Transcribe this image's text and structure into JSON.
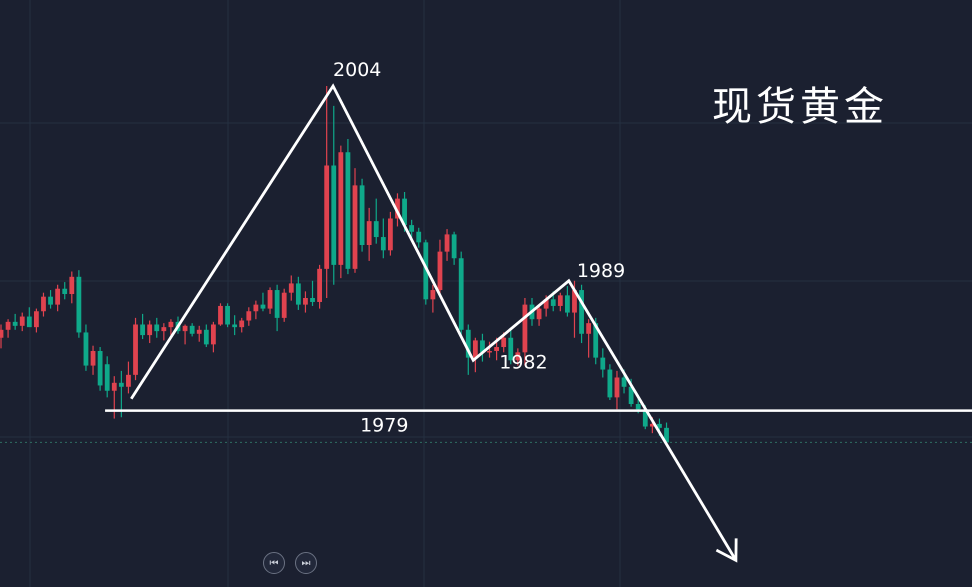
{
  "title": "现货黄金",
  "colors": {
    "background": "#1b2030",
    "up": "#e0434f",
    "down": "#0fa98a",
    "grid": "#253041",
    "annotation": "#ffffff"
  },
  "nav": {
    "prev_icon": "skip-back-icon",
    "next_icon": "skip-forward-icon"
  },
  "chart_data": {
    "type": "candlestick",
    "title": "现货黄金",
    "grid": true,
    "up_color": "red",
    "down_color": "green",
    "candles": [
      [
        1985.0,
        1986.0,
        1984.2,
        1985.6
      ],
      [
        1985.6,
        1986.4,
        1985.0,
        1986.2
      ],
      [
        1986.2,
        1986.8,
        1985.6,
        1985.9
      ],
      [
        1985.9,
        1986.9,
        1985.5,
        1986.6
      ],
      [
        1986.6,
        1987.3,
        1986.0,
        1985.8
      ],
      [
        1985.8,
        1987.2,
        1985.4,
        1987.0
      ],
      [
        1987.0,
        1988.4,
        1986.6,
        1988.1
      ],
      [
        1988.1,
        1988.6,
        1987.2,
        1987.5
      ],
      [
        1987.5,
        1989.0,
        1987.0,
        1988.7
      ],
      [
        1988.7,
        1989.2,
        1987.9,
        1988.3
      ],
      [
        1988.3,
        1990.0,
        1987.6,
        1989.6
      ],
      [
        1989.6,
        1990.1,
        1985.0,
        1985.4
      ],
      [
        1985.4,
        1986.0,
        1982.5,
        1982.9
      ],
      [
        1982.9,
        1984.4,
        1982.2,
        1984.0
      ],
      [
        1984.0,
        1984.3,
        1981.0,
        1981.4
      ],
      [
        1983.0,
        1983.6,
        1980.5,
        1981.0
      ],
      [
        1981.0,
        1982.1,
        1978.9,
        1981.6
      ],
      [
        1981.6,
        1982.5,
        1979.0,
        1981.3
      ],
      [
        1981.3,
        1983.2,
        1980.8,
        1982.2
      ],
      [
        1982.2,
        1986.5,
        1981.8,
        1986.0
      ],
      [
        1986.0,
        1986.8,
        1984.9,
        1985.2
      ],
      [
        1985.2,
        1986.3,
        1984.6,
        1986.0
      ],
      [
        1986.0,
        1986.5,
        1985.0,
        1985.5
      ],
      [
        1985.5,
        1986.1,
        1984.8,
        1985.8
      ],
      [
        1985.8,
        1986.4,
        1985.2,
        1986.2
      ],
      [
        1986.2,
        1986.6,
        1985.3,
        1985.5
      ],
      [
        1985.5,
        1986.0,
        1984.5,
        1985.9
      ],
      [
        1985.9,
        1986.1,
        1985.1,
        1985.3
      ],
      [
        1985.3,
        1985.9,
        1984.7,
        1985.6
      ],
      [
        1985.6,
        1986.0,
        1984.3,
        1984.5
      ],
      [
        1984.5,
        1986.2,
        1983.9,
        1986.0
      ],
      [
        1986.0,
        1987.6,
        1985.9,
        1987.4
      ],
      [
        1987.4,
        1987.6,
        1985.8,
        1986.0
      ],
      [
        1986.0,
        1986.7,
        1985.2,
        1985.8
      ],
      [
        1985.8,
        1986.5,
        1985.4,
        1986.3
      ],
      [
        1986.3,
        1987.3,
        1985.9,
        1987.0
      ],
      [
        1987.0,
        1987.8,
        1986.4,
        1987.5
      ],
      [
        1987.5,
        1988.4,
        1987.0,
        1987.2
      ],
      [
        1987.2,
        1988.8,
        1986.8,
        1988.6
      ],
      [
        1988.6,
        1989.0,
        1985.5,
        1986.5
      ],
      [
        1986.5,
        1988.7,
        1986.2,
        1988.4
      ],
      [
        1988.4,
        1989.7,
        1987.8,
        1989.1
      ],
      [
        1989.1,
        1989.6,
        1987.1,
        1987.5
      ],
      [
        1987.5,
        1988.5,
        1986.9,
        1988.0
      ],
      [
        1988.0,
        1989.3,
        1987.4,
        1987.7
      ],
      [
        1987.7,
        1990.5,
        1987.2,
        1990.2
      ],
      [
        1990.2,
        2004.0,
        1988.0,
        1998.0
      ],
      [
        1998.0,
        2002.5,
        1989.0,
        1990.5
      ],
      [
        1990.5,
        1999.5,
        1989.5,
        1999.0
      ],
      [
        1999.0,
        2000.0,
        1989.8,
        1990.2
      ],
      [
        1990.2,
        1997.8,
        1989.9,
        1996.5
      ],
      [
        1996.5,
        1997.0,
        1991.5,
        1992.0
      ],
      [
        1992.0,
        1994.8,
        1990.8,
        1993.8
      ],
      [
        1993.8,
        1995.5,
        1992.1,
        1992.6
      ],
      [
        1992.6,
        1994.0,
        1991.0,
        1991.6
      ],
      [
        1991.6,
        1994.5,
        1991.2,
        1994.0
      ],
      [
        1994.0,
        1995.9,
        1993.4,
        1995.5
      ],
      [
        1995.5,
        1996.0,
        1993.0,
        1993.5
      ],
      [
        1993.5,
        1993.9,
        1992.4,
        1993.0
      ],
      [
        1993.0,
        1993.3,
        1991.8,
        1992.2
      ],
      [
        1992.2,
        1992.4,
        1987.5,
        1987.9
      ],
      [
        1987.9,
        1989.0,
        1986.9,
        1988.6
      ],
      [
        1988.6,
        1992.4,
        1988.2,
        1991.5
      ],
      [
        1991.5,
        1993.2,
        1990.8,
        1992.8
      ],
      [
        1992.8,
        1993.0,
        1990.5,
        1991.0
      ],
      [
        1991.0,
        1991.5,
        1985.2,
        1985.6
      ],
      [
        1985.6,
        1986.0,
        1982.2,
        1983.5
      ],
      [
        1983.5,
        1985.0,
        1982.4,
        1984.8
      ],
      [
        1984.8,
        1985.3,
        1983.2,
        1983.9
      ],
      [
        1983.9,
        1984.7,
        1983.5,
        1984.0
      ],
      [
        1984.0,
        1985.0,
        1983.3,
        1984.3
      ],
      [
        1984.3,
        1985.4,
        1983.9,
        1985.0
      ],
      [
        1985.0,
        1985.6,
        1983.0,
        1983.3
      ],
      [
        1983.3,
        1984.2,
        1982.9,
        1983.9
      ],
      [
        1983.9,
        1988.0,
        1982.9,
        1987.5
      ],
      [
        1987.5,
        1988.0,
        1985.9,
        1986.4
      ],
      [
        1986.4,
        1987.5,
        1985.9,
        1987.2
      ],
      [
        1987.2,
        1988.2,
        1986.6,
        1987.9
      ],
      [
        1987.9,
        1988.5,
        1987.0,
        1987.4
      ],
      [
        1987.4,
        1988.4,
        1987.0,
        1988.2
      ],
      [
        1988.2,
        1988.9,
        1986.6,
        1986.9
      ],
      [
        1986.9,
        1989.3,
        1985.0,
        1988.6
      ],
      [
        1988.6,
        1989.0,
        1984.6,
        1985.3
      ],
      [
        1985.3,
        1986.4,
        1983.5,
        1986.1
      ],
      [
        1986.1,
        1986.5,
        1983.0,
        1983.5
      ],
      [
        1983.5,
        1984.2,
        1982.0,
        1982.6
      ],
      [
        1982.6,
        1983.0,
        1980.3,
        1980.5
      ],
      [
        1980.5,
        1982.5,
        1979.6,
        1982.0
      ],
      [
        1982.0,
        1982.6,
        1980.8,
        1981.3
      ],
      [
        1981.3,
        1981.9,
        1979.8,
        1980.0
      ],
      [
        1980.0,
        1980.7,
        1979.3,
        1979.6
      ],
      [
        1979.6,
        1979.9,
        1978.1,
        1978.3
      ],
      [
        1978.3,
        1979.0,
        1977.8,
        1978.5
      ],
      [
        1978.5,
        1978.9,
        1977.6,
        1978.2
      ],
      [
        1978.2,
        1978.6,
        1976.9,
        1977.1
      ]
    ],
    "annotations": {
      "zigzag": [
        [
          18.4,
          1980.4
        ],
        [
          46.9,
          2004.0
        ],
        [
          66.7,
          1983.3
        ],
        [
          80.2,
          1989.3
        ],
        [
          103.8,
          1968.2
        ]
      ],
      "arrow_at_end": true,
      "support_line": {
        "price": 1979.5,
        "from_bar": 14.7
      },
      "last_price": 1977.1,
      "labels": [
        {
          "text": "2004",
          "bar": 46.9,
          "price": 2004.0
        },
        {
          "text": "1989",
          "bar": 80.2,
          "price": 1989.3
        },
        {
          "text": "1982",
          "bar": 66.7,
          "price": 1983.3
        },
        {
          "text": "1979",
          "bar": 14.7,
          "price": 1979.5
        }
      ]
    }
  }
}
